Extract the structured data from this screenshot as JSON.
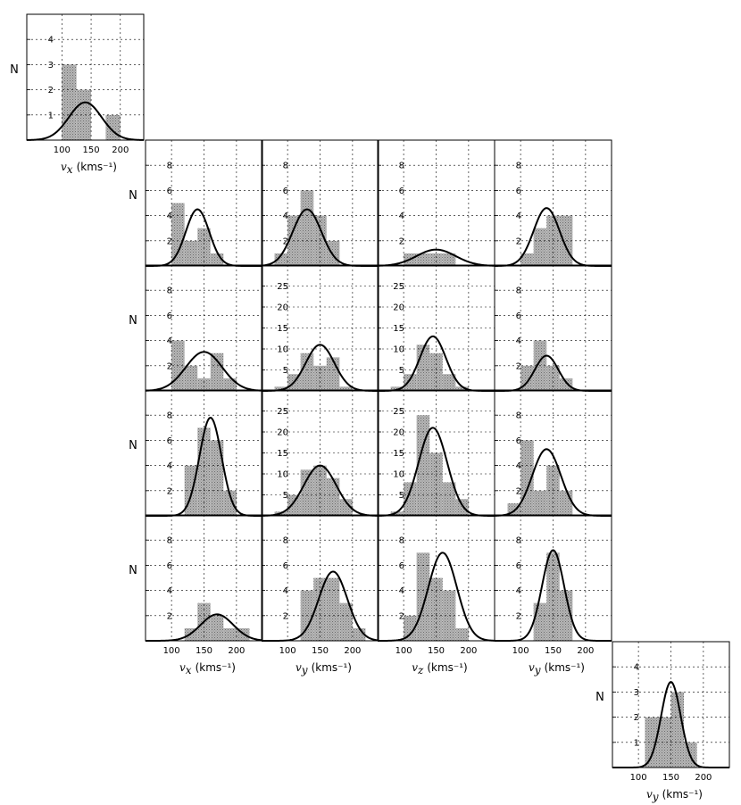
{
  "chart_data": [
    {
      "type": "bar",
      "panel": "r0c0",
      "bins": [
        [
          50,
          75,
          0
        ],
        [
          75,
          100,
          0
        ],
        [
          100,
          125,
          3
        ],
        [
          125,
          150,
          2
        ],
        [
          150,
          175,
          0
        ],
        [
          175,
          200,
          1
        ],
        [
          200,
          225,
          0
        ]
      ],
      "fit": {
        "mu": 140,
        "sigma": 28,
        "peak": 1.5
      },
      "xlim": [
        40,
        240
      ],
      "ylim": [
        0,
        5
      ],
      "yticks": [
        1,
        2,
        3,
        4
      ],
      "xticks": [
        100,
        150,
        200
      ],
      "ylabel": "N",
      "xlabel": "v_x",
      "xlabel_unit": "(kms⁻¹)"
    },
    {
      "type": "bar",
      "panel": "r1c1",
      "bins": [
        [
          100,
          120,
          5
        ],
        [
          120,
          140,
          2
        ],
        [
          140,
          160,
          3
        ],
        [
          160,
          180,
          1
        ]
      ],
      "fit": {
        "mu": 140,
        "sigma": 18,
        "peak": 4.5
      },
      "xlim": [
        60,
        240
      ],
      "ylim": [
        0,
        10
      ],
      "yticks": [
        2,
        4,
        6,
        8
      ],
      "xticks": [
        100,
        150,
        200
      ],
      "ylabel": "N"
    },
    {
      "type": "bar",
      "panel": "r1c2",
      "bins": [
        [
          80,
          100,
          1
        ],
        [
          100,
          120,
          4
        ],
        [
          120,
          140,
          6
        ],
        [
          140,
          160,
          4
        ],
        [
          160,
          180,
          2
        ]
      ],
      "fit": {
        "mu": 130,
        "sigma": 22,
        "peak": 4.5
      },
      "xlim": [
        60,
        240
      ],
      "ylim": [
        0,
        10
      ],
      "yticks": [
        2,
        4,
        6,
        8
      ],
      "xticks": [
        100,
        150,
        200
      ]
    },
    {
      "type": "bar",
      "panel": "r1c3",
      "bins": [
        [
          100,
          120,
          1
        ],
        [
          120,
          140,
          1
        ],
        [
          140,
          160,
          1
        ],
        [
          160,
          180,
          1
        ]
      ],
      "fit": {
        "mu": 150,
        "sigma": 30,
        "peak": 1.3
      },
      "xlim": [
        60,
        240
      ],
      "ylim": [
        0,
        10
      ],
      "yticks": [
        2,
        4,
        6,
        8
      ],
      "xticks": [
        100,
        150,
        200
      ]
    },
    {
      "type": "bar",
      "panel": "r1c4",
      "bins": [
        [
          100,
          120,
          1
        ],
        [
          120,
          140,
          3
        ],
        [
          140,
          160,
          4
        ],
        [
          160,
          180,
          4
        ]
      ],
      "fit": {
        "mu": 140,
        "sigma": 20,
        "peak": 4.6
      },
      "xlim": [
        60,
        240
      ],
      "ylim": [
        0,
        10
      ],
      "yticks": [
        2,
        4,
        6,
        8
      ],
      "xticks": [
        100,
        150,
        200
      ]
    },
    {
      "type": "bar",
      "panel": "r2c1",
      "bins": [
        [
          80,
          100,
          0
        ],
        [
          100,
          120,
          4
        ],
        [
          120,
          140,
          2
        ],
        [
          140,
          160,
          1
        ],
        [
          160,
          180,
          3
        ],
        [
          180,
          200,
          1
        ]
      ],
      "fit": {
        "mu": 150,
        "sigma": 28,
        "peak": 3.1
      },
      "xlim": [
        60,
        240
      ],
      "ylim": [
        0,
        10
      ],
      "yticks": [
        2,
        4,
        6,
        8
      ],
      "xticks": [
        100,
        150,
        200
      ],
      "ylabel": "N"
    },
    {
      "type": "bar",
      "panel": "r2c2",
      "bins": [
        [
          80,
          100,
          1
        ],
        [
          100,
          120,
          4
        ],
        [
          120,
          140,
          9
        ],
        [
          140,
          160,
          6
        ],
        [
          160,
          180,
          8
        ],
        [
          180,
          200,
          1
        ]
      ],
      "fit": {
        "mu": 150,
        "sigma": 22,
        "peak": 11
      },
      "xlim": [
        60,
        240
      ],
      "ylim": [
        0,
        30
      ],
      "yticks": [
        5,
        10,
        15,
        20,
        25
      ],
      "xticks": [
        100,
        150,
        200
      ]
    },
    {
      "type": "bar",
      "panel": "r2c3",
      "bins": [
        [
          80,
          100,
          1
        ],
        [
          100,
          120,
          4
        ],
        [
          120,
          140,
          11
        ],
        [
          140,
          160,
          9
        ],
        [
          160,
          180,
          4
        ],
        [
          180,
          200,
          1
        ]
      ],
      "fit": {
        "mu": 145,
        "sigma": 20,
        "peak": 13
      },
      "xlim": [
        60,
        240
      ],
      "ylim": [
        0,
        30
      ],
      "yticks": [
        5,
        10,
        15,
        20,
        25
      ],
      "xticks": [
        100,
        150,
        200
      ]
    },
    {
      "type": "bar",
      "panel": "r2c4",
      "bins": [
        [
          100,
          120,
          2
        ],
        [
          120,
          140,
          4
        ],
        [
          140,
          160,
          2
        ],
        [
          160,
          180,
          1
        ]
      ],
      "fit": {
        "mu": 140,
        "sigma": 18,
        "peak": 2.8
      },
      "xlim": [
        60,
        240
      ],
      "ylim": [
        0,
        10
      ],
      "yticks": [
        2,
        4,
        6,
        8
      ],
      "xticks": [
        100,
        150,
        200
      ]
    },
    {
      "type": "bar",
      "panel": "r3c1",
      "bins": [
        [
          120,
          140,
          4
        ],
        [
          140,
          160,
          7
        ],
        [
          160,
          180,
          6
        ],
        [
          180,
          200,
          2
        ]
      ],
      "fit": {
        "mu": 160,
        "sigma": 17,
        "peak": 7.8
      },
      "xlim": [
        60,
        240
      ],
      "ylim": [
        0,
        10
      ],
      "yticks": [
        2,
        4,
        6,
        8
      ],
      "xticks": [
        100,
        150,
        200
      ],
      "ylabel": "N"
    },
    {
      "type": "bar",
      "panel": "r3c2",
      "bins": [
        [
          80,
          100,
          1
        ],
        [
          100,
          120,
          5
        ],
        [
          120,
          140,
          11
        ],
        [
          140,
          160,
          12
        ],
        [
          160,
          180,
          9
        ],
        [
          180,
          200,
          4
        ]
      ],
      "fit": {
        "mu": 150,
        "sigma": 25,
        "peak": 12
      },
      "xlim": [
        60,
        240
      ],
      "ylim": [
        0,
        30
      ],
      "yticks": [
        5,
        10,
        15,
        20,
        25
      ],
      "xticks": [
        100,
        150,
        200
      ]
    },
    {
      "type": "bar",
      "panel": "r3c3",
      "bins": [
        [
          80,
          100,
          1
        ],
        [
          100,
          120,
          8
        ],
        [
          120,
          140,
          24
        ],
        [
          140,
          160,
          15
        ],
        [
          160,
          180,
          8
        ],
        [
          180,
          200,
          4
        ]
      ],
      "fit": {
        "mu": 145,
        "sigma": 22,
        "peak": 21
      },
      "xlim": [
        60,
        240
      ],
      "ylim": [
        0,
        30
      ],
      "yticks": [
        5,
        10,
        15,
        20,
        25
      ],
      "xticks": [
        100,
        150,
        200
      ]
    },
    {
      "type": "bar",
      "panel": "r3c4",
      "bins": [
        [
          80,
          100,
          1
        ],
        [
          100,
          120,
          6
        ],
        [
          120,
          140,
          2
        ],
        [
          140,
          160,
          4
        ],
        [
          160,
          180,
          2
        ]
      ],
      "fit": {
        "mu": 140,
        "sigma": 22,
        "peak": 5.3
      },
      "xlim": [
        60,
        240
      ],
      "ylim": [
        0,
        10
      ],
      "yticks": [
        2,
        4,
        6,
        8
      ],
      "xticks": [
        100,
        150,
        200
      ]
    },
    {
      "type": "bar",
      "panel": "r4c1",
      "bins": [
        [
          120,
          140,
          1
        ],
        [
          140,
          160,
          3
        ],
        [
          160,
          180,
          2
        ],
        [
          180,
          200,
          1
        ],
        [
          200,
          220,
          1
        ]
      ],
      "fit": {
        "mu": 170,
        "sigma": 25,
        "peak": 2.1
      },
      "xlim": [
        60,
        240
      ],
      "ylim": [
        0,
        10
      ],
      "yticks": [
        2,
        4,
        6,
        8
      ],
      "xticks": [
        100,
        150,
        200
      ],
      "ylabel": "N",
      "xlabel": "v_x",
      "xlabel_unit": "(kms⁻¹)"
    },
    {
      "type": "bar",
      "panel": "r4c2",
      "bins": [
        [
          120,
          140,
          4
        ],
        [
          140,
          160,
          5
        ],
        [
          160,
          180,
          5
        ],
        [
          180,
          200,
          3
        ],
        [
          200,
          220,
          1
        ]
      ],
      "fit": {
        "mu": 170,
        "sigma": 22,
        "peak": 5.5
      },
      "xlim": [
        60,
        240
      ],
      "ylim": [
        0,
        10
      ],
      "yticks": [
        2,
        4,
        6,
        8
      ],
      "xticks": [
        100,
        150,
        200
      ],
      "xlabel": "v_y",
      "xlabel_unit": "(kms⁻¹)"
    },
    {
      "type": "bar",
      "panel": "r4c3",
      "bins": [
        [
          100,
          120,
          2
        ],
        [
          120,
          140,
          7
        ],
        [
          140,
          160,
          5
        ],
        [
          160,
          180,
          4
        ],
        [
          180,
          200,
          1
        ]
      ],
      "fit": {
        "mu": 160,
        "sigma": 22,
        "peak": 7
      },
      "xlim": [
        60,
        240
      ],
      "ylim": [
        0,
        10
      ],
      "yticks": [
        2,
        4,
        6,
        8
      ],
      "xticks": [
        100,
        150,
        200
      ],
      "xlabel": "v_z",
      "xlabel_unit": "(kms⁻¹)"
    },
    {
      "type": "bar",
      "panel": "r4c4",
      "bins": [
        [
          120,
          140,
          3
        ],
        [
          140,
          160,
          7
        ],
        [
          160,
          180,
          4
        ]
      ],
      "fit": {
        "mu": 150,
        "sigma": 17,
        "peak": 7.2
      },
      "xlim": [
        60,
        240
      ],
      "ylim": [
        0,
        10
      ],
      "yticks": [
        2,
        4,
        6,
        8
      ],
      "xticks": [
        100,
        150,
        200
      ],
      "xlabel": "v_y",
      "xlabel_unit": "(kms⁻¹)"
    },
    {
      "type": "bar",
      "panel": "r5c5",
      "bins": [
        [
          110,
          130,
          2
        ],
        [
          130,
          150,
          2
        ],
        [
          150,
          170,
          3
        ],
        [
          170,
          190,
          1
        ]
      ],
      "fit": {
        "mu": 150,
        "sigma": 15,
        "peak": 3.4
      },
      "xlim": [
        60,
        240
      ],
      "ylim": [
        0,
        5
      ],
      "yticks": [
        1,
        2,
        3,
        4
      ],
      "xticks": [
        100,
        150,
        200
      ],
      "ylabel": "N",
      "xlabel": "v_y",
      "xlabel_unit": "(kms⁻¹)"
    }
  ]
}
